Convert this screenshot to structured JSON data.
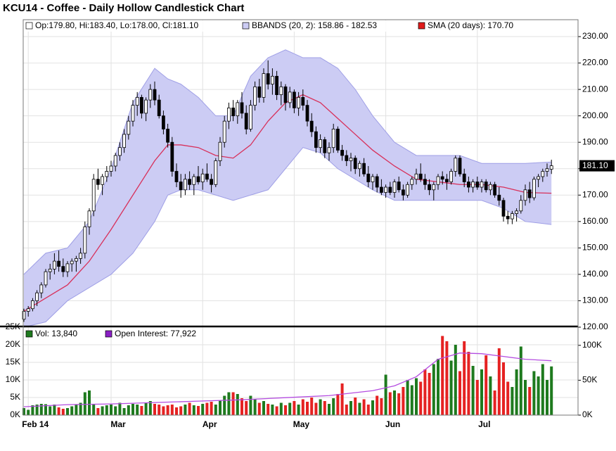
{
  "chart_data": [
    {
      "type": "candlestick",
      "title": "KCU14 - Coffee - Daily Hollow Candlestick Chart",
      "legend": "Op:179.80, Hi:183.40, Lo:178.00, Cl:181.10",
      "last_label": "181.10",
      "up_fill": "#ffffff",
      "down_fill": "#000000",
      "candle_color": "#000000",
      "open": [
        123,
        126,
        127,
        130,
        133,
        136,
        141,
        142,
        145,
        143,
        141,
        144,
        145,
        146,
        148,
        158,
        164,
        176,
        174,
        177,
        179,
        181,
        185,
        188,
        193,
        198,
        204,
        207,
        201,
        206,
        210,
        206,
        200,
        195,
        190,
        179,
        175,
        172,
        176,
        174,
        177,
        175,
        178,
        176,
        174,
        183,
        190,
        198,
        203,
        200,
        205,
        201,
        195,
        204,
        211,
        207,
        216,
        212,
        215,
        208,
        211,
        205,
        209,
        203,
        207,
        204,
        198,
        194,
        188,
        191,
        186,
        188,
        195,
        187,
        185,
        183,
        184,
        180,
        182,
        178,
        175,
        177,
        173,
        171,
        173,
        171,
        175,
        172,
        170,
        174,
        176,
        178,
        176,
        174,
        172,
        174,
        177,
        176,
        175,
        179,
        184,
        178,
        175,
        173,
        175,
        173,
        175,
        172,
        174,
        170,
        168,
        162,
        161,
        163,
        164,
        168,
        172,
        169,
        176,
        177,
        179,
        179.8
      ],
      "high": [
        127,
        128,
        131,
        134,
        137,
        142,
        144,
        148,
        149,
        146,
        145,
        146,
        147,
        150,
        160,
        165,
        178,
        180,
        178,
        181,
        183,
        186,
        190,
        195,
        200,
        206,
        209,
        208,
        207,
        212,
        213,
        208,
        202,
        197,
        192,
        182,
        178,
        178,
        179,
        178,
        181,
        180,
        182,
        178,
        184,
        192,
        200,
        205,
        206,
        206,
        209,
        204,
        206,
        213,
        214,
        218,
        221,
        218,
        217,
        213,
        212,
        211,
        210,
        209,
        210,
        206,
        201,
        196,
        193,
        192,
        190,
        197,
        196,
        189,
        187,
        186,
        185,
        183,
        184,
        181,
        178,
        178,
        176,
        174,
        175,
        176,
        177,
        174,
        175,
        177,
        180,
        182,
        178,
        176,
        175,
        178,
        179,
        178,
        180,
        185,
        185,
        180,
        177,
        176,
        177,
        176,
        176,
        175,
        175,
        173,
        169,
        164,
        164,
        165,
        170,
        174,
        175,
        177,
        178,
        180,
        182,
        183.4
      ],
      "low": [
        122,
        124,
        126,
        128,
        131,
        135,
        138,
        140,
        141,
        139,
        139,
        141,
        141,
        144,
        146,
        155,
        162,
        172,
        170,
        175,
        177,
        179,
        183,
        186,
        191,
        196,
        200,
        199,
        198,
        203,
        204,
        199,
        193,
        188,
        177,
        173,
        169,
        170,
        172,
        170,
        174,
        172,
        175,
        171,
        173,
        181,
        188,
        195,
        198,
        197,
        199,
        193,
        194,
        202,
        205,
        205,
        210,
        208,
        206,
        204,
        202,
        203,
        201,
        200,
        202,
        196,
        192,
        186,
        186,
        184,
        183,
        186,
        186,
        183,
        181,
        179,
        178,
        177,
        177,
        173,
        172,
        171,
        170,
        169,
        170,
        169,
        171,
        168,
        169,
        172,
        174,
        175,
        172,
        170,
        168,
        172,
        174,
        172,
        174,
        177,
        177,
        173,
        171,
        171,
        172,
        171,
        171,
        170,
        169,
        166,
        160,
        159,
        159,
        160,
        163,
        166,
        167,
        168,
        173,
        175,
        177,
        178
      ],
      "close": [
        126,
        127,
        130,
        133,
        136,
        141,
        142,
        145,
        143,
        141,
        144,
        145,
        146,
        148,
        158,
        164,
        176,
        174,
        177,
        179,
        181,
        185,
        188,
        193,
        198,
        204,
        207,
        201,
        206,
        210,
        206,
        200,
        195,
        190,
        179,
        175,
        172,
        176,
        174,
        177,
        175,
        178,
        176,
        174,
        183,
        190,
        198,
        203,
        200,
        205,
        201,
        195,
        204,
        211,
        207,
        216,
        212,
        215,
        208,
        211,
        205,
        209,
        203,
        207,
        204,
        198,
        194,
        188,
        191,
        186,
        188,
        195,
        187,
        185,
        183,
        184,
        180,
        182,
        178,
        175,
        177,
        173,
        171,
        173,
        171,
        175,
        172,
        170,
        174,
        176,
        178,
        176,
        174,
        172,
        174,
        177,
        176,
        175,
        179,
        184,
        178,
        175,
        173,
        175,
        173,
        175,
        172,
        174,
        170,
        168,
        162,
        161,
        163,
        164,
        168,
        172,
        169,
        176,
        177,
        179,
        180,
        181.1
      ],
      "overlays": [
        {
          "type": "band",
          "label": "BBANDS (20, 2): 158.86 - 182.53",
          "color": "#9f9fe6",
          "fill": "#ccccf4",
          "x": [
            0,
            5,
            10,
            15,
            20,
            25,
            30,
            33,
            36,
            40,
            44,
            48,
            52,
            56,
            60,
            64,
            68,
            72,
            76,
            80,
            85,
            90,
            95,
            100,
            105,
            110,
            115,
            121
          ],
          "upper": [
            140,
            148,
            150,
            160,
            180,
            205,
            218,
            214,
            212,
            207,
            200,
            200,
            215,
            222,
            225,
            222,
            222,
            218,
            210,
            200,
            190,
            185,
            185,
            185,
            182,
            182,
            182,
            182.53
          ],
          "lower": [
            120,
            122,
            130,
            135,
            140,
            148,
            160,
            170,
            172,
            172,
            170,
            168,
            170,
            172,
            180,
            188,
            186,
            180,
            176,
            172,
            168,
            168,
            168,
            168,
            168,
            165,
            160,
            158.86
          ]
        },
        {
          "type": "line",
          "label": "SMA (20 days): 170.70",
          "color": "#d8305a",
          "box_color": "#e01b1b",
          "x": [
            0,
            5,
            10,
            15,
            20,
            25,
            30,
            33,
            36,
            40,
            44,
            48,
            52,
            56,
            60,
            64,
            68,
            72,
            76,
            80,
            85,
            90,
            95,
            100,
            105,
            110,
            115,
            121
          ],
          "values": [
            126,
            131,
            136,
            145,
            157,
            170,
            183,
            189,
            189,
            188,
            185,
            184,
            189,
            198,
            205,
            208,
            205,
            199,
            193,
            187,
            181,
            176,
            175,
            174,
            174,
            173,
            171,
            170.7
          ]
        }
      ],
      "ylim": [
        120,
        236.4
      ],
      "yticks": [
        {
          "value": 120,
          "label": "120.00"
        },
        {
          "value": 130,
          "label": "130.00"
        },
        {
          "value": 140,
          "label": "140.00"
        },
        {
          "value": 150,
          "label": "150.00"
        },
        {
          "value": 160,
          "label": "160.00"
        },
        {
          "value": 170,
          "label": "170.00"
        },
        {
          "value": 180,
          "label": "180.00"
        },
        {
          "value": 190,
          "label": "190.00"
        },
        {
          "value": 200,
          "label": "200.00"
        },
        {
          "value": 210,
          "label": "210.00"
        },
        {
          "value": 220,
          "label": "220.00"
        },
        {
          "value": 230,
          "label": "230.00"
        }
      ],
      "grid": true
    },
    {
      "type": "bar",
      "categories": [
        null,
        "Feb 14",
        null,
        null,
        null,
        null,
        null,
        null,
        null,
        null,
        null,
        null,
        null,
        null,
        null,
        null,
        null,
        null,
        null,
        null,
        "Mar",
        null,
        null,
        null,
        null,
        null,
        null,
        null,
        null,
        null,
        null,
        null,
        null,
        null,
        null,
        null,
        null,
        null,
        null,
        null,
        null,
        "Apr",
        null,
        null,
        null,
        null,
        null,
        null,
        null,
        null,
        null,
        null,
        null,
        null,
        null,
        null,
        null,
        null,
        null,
        null,
        null,
        null,
        "May",
        null,
        null,
        null,
        null,
        null,
        null,
        null,
        null,
        null,
        null,
        null,
        null,
        null,
        null,
        null,
        null,
        null,
        null,
        null,
        null,
        "Jun",
        null,
        null,
        null,
        null,
        null,
        null,
        null,
        null,
        null,
        null,
        null,
        null,
        null,
        null,
        null,
        null,
        null,
        null,
        null,
        null,
        "Jul",
        null,
        null,
        null,
        null,
        null,
        null,
        null,
        null,
        null,
        null,
        null,
        null,
        null,
        null,
        null,
        null,
        null
      ],
      "series": [
        {
          "label": "Vol: 13,840",
          "up_color": "#1e7a1e",
          "down_color": "#e52222",
          "values": [
            2000,
            1500,
            2800,
            3000,
            3200,
            3100,
            2500,
            3000,
            2200,
            1800,
            2000,
            2500,
            3000,
            3500,
            6500,
            7000,
            3000,
            2000,
            2500,
            2800,
            3000,
            2500,
            3500,
            2000,
            2800,
            3200,
            3000,
            2600,
            3500,
            4000,
            3200,
            3000,
            2500,
            2800,
            3000,
            2200,
            2500,
            3000,
            3500,
            2800,
            2600,
            3200,
            3500,
            3800,
            3000,
            4200,
            5500,
            6500,
            6500,
            6000,
            4800,
            4000,
            5500,
            4500,
            3500,
            4000,
            3200,
            3000,
            2500,
            3500,
            2800,
            3500,
            4000,
            3000,
            4500,
            3800,
            5000,
            3500,
            4500,
            4000,
            3200,
            4800,
            6000,
            9000,
            3000,
            4000,
            5000,
            3500,
            4500,
            3000,
            4200,
            5500,
            4800,
            11500,
            6500,
            7000,
            6200,
            8000,
            10000,
            8500,
            10500,
            9500,
            13000,
            12000,
            14500,
            16000,
            22500,
            21000,
            15500,
            20000,
            12500,
            21000,
            18000,
            14000,
            10000,
            13000,
            17000,
            11000,
            7000,
            19000,
            15000,
            9500,
            8000,
            13000,
            19500,
            10000,
            8000,
            12500,
            11000,
            14500,
            10000,
            13840
          ]
        },
        {
          "label": "Open Interest: 77,922",
          "axis": "y2",
          "color": "#b44ce0",
          "box_color": "#8a1fc4",
          "x": [
            0,
            10,
            20,
            30,
            40,
            50,
            60,
            70,
            80,
            85,
            90,
            95,
            100,
            105,
            110,
            115,
            121
          ],
          "values": [
            12000,
            15000,
            16000,
            18000,
            20000,
            22000,
            25000,
            28000,
            35000,
            42000,
            55000,
            80000,
            89000,
            88000,
            84000,
            80000,
            77922
          ]
        }
      ],
      "ylim": [
        0,
        25000
      ],
      "yticks": [
        {
          "value": 0,
          "label": "0K"
        },
        {
          "value": 5000,
          "label": "5K"
        },
        {
          "value": 10000,
          "label": "10K"
        },
        {
          "value": 15000,
          "label": "15K"
        },
        {
          "value": 20000,
          "label": "20K"
        },
        {
          "value": 25000,
          "label": "25K"
        }
      ],
      "y2lim": [
        0,
        126000
      ],
      "y2ticks": [
        {
          "value": 0,
          "label": "0K"
        },
        {
          "value": 50000,
          "label": "50K"
        },
        {
          "value": 100000,
          "label": "100K"
        }
      ]
    }
  ]
}
